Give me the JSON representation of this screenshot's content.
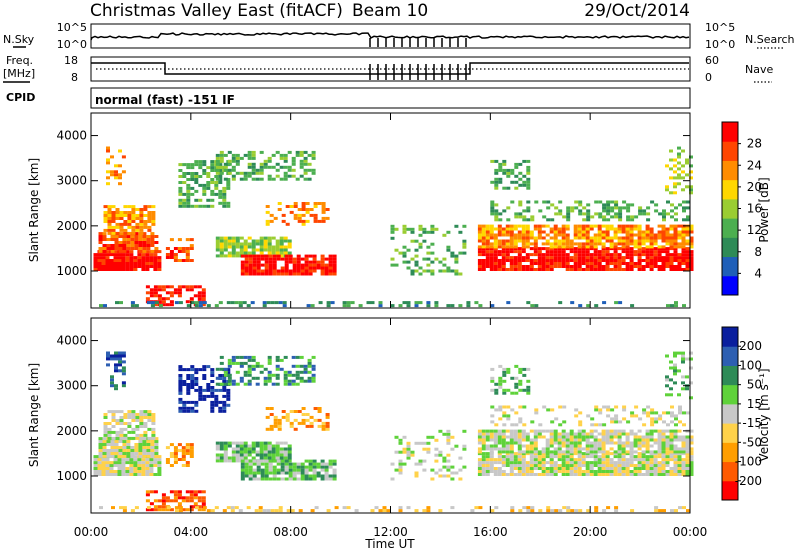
{
  "header": {
    "site": "Christmas Valley East (fitACF)",
    "beam": "Beam 10",
    "date": "29/Oct/2014"
  },
  "summary": {
    "nsky_label": "N.Sky",
    "nsky_ticks": [
      "10^5",
      "10^0"
    ],
    "nsearch_label": "N.Search",
    "freq_label": [
      "Freq.",
      "[MHz]"
    ],
    "freq_ticks": [
      "18",
      "8"
    ],
    "nave_label": "Nave",
    "nave_ticks": [
      "60",
      "0"
    ],
    "cpid_label": "CPID",
    "cpid_text": "normal (fast) -151 IF"
  },
  "colors": {
    "power": [
      "#0000ff",
      "#1f5fb8",
      "#2e8b57",
      "#4caf50",
      "#9acd32",
      "#ffd700",
      "#ff8c00",
      "#ff4500",
      "#ff0000"
    ],
    "velocity": [
      "#0a1f9e",
      "#2d5fb2",
      "#2e8b57",
      "#5fd23a",
      "#c8c8c8",
      "#ffd24a",
      "#ff9e00",
      "#ff5a00",
      "#ff0000"
    ]
  },
  "chart_data": [
    {
      "type": "heatmap",
      "name": "power",
      "ylabel": "Slant Range [km]",
      "xlabel": "",
      "x_ticks": [
        "00:00",
        "04:00",
        "08:00",
        "12:00",
        "16:00",
        "20:00",
        "00:00"
      ],
      "xlim_hours": [
        0,
        24
      ],
      "ylim": [
        180,
        4500
      ],
      "y_ticks": [
        1000,
        2000,
        3000,
        4000
      ],
      "colorbar": {
        "label": "Power [dB]",
        "ticks": [
          "28",
          "24",
          "20",
          "16",
          "12",
          "8",
          "4"
        ],
        "range": [
          0,
          30
        ]
      }
    },
    {
      "type": "heatmap",
      "name": "velocity",
      "ylabel": "Slant Range [km]",
      "xlabel": "Time UT",
      "x_ticks": [
        "00:00",
        "04:00",
        "08:00",
        "12:00",
        "16:00",
        "20:00",
        "00:00"
      ],
      "xlim_hours": [
        0,
        24
      ],
      "ylim": [
        180,
        4500
      ],
      "y_ticks": [
        1000,
        2000,
        3000,
        4000
      ],
      "colorbar": {
        "label": "Velocity [m s⁻¹]",
        "ticks": [
          "200",
          "100",
          "50",
          "15",
          "-15",
          "-50",
          "-100",
          "-200"
        ],
        "range": [
          -250,
          250
        ]
      }
    }
  ]
}
